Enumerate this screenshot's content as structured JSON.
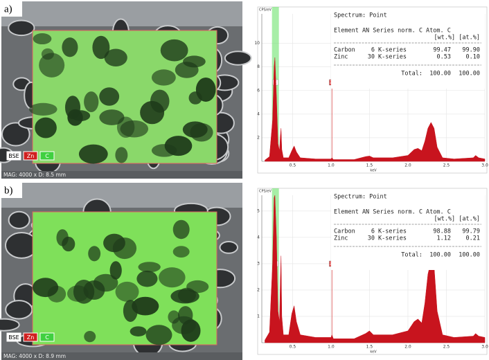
{
  "panels": [
    {
      "label": "a)",
      "image": {
        "tags": [
          "BSE",
          "Zn",
          "C"
        ],
        "footer": "MAG: 4000 x   D: 8.5 mm"
      },
      "spectrum": {
        "type": "area",
        "ylabel": "CPS/eV",
        "xlabel": "keV",
        "color": "#c8141e",
        "grid": true,
        "xlim": [
          0.1,
          3.0
        ],
        "ylim": [
          0,
          12.5
        ],
        "xticks": [
          0.5,
          {
            "value": 1,
            "label": "1.0"
          },
          1.5,
          {
            "value": 2,
            "label": "2.0"
          },
          2.5,
          {
            "value": 3,
            "label": "3.0"
          }
        ],
        "yticks": [
          2,
          4,
          6,
          8,
          10
        ],
        "markers": [
          {
            "label": "C",
            "x": 0.277,
            "color": "#5ee05e"
          },
          {
            "label": "Zn",
            "x": 1.012,
            "color": "#e05050"
          }
        ],
        "x": [
          0.14,
          0.2,
          0.24,
          0.26,
          0.27,
          0.29,
          0.31,
          0.33,
          0.34,
          0.35,
          0.36,
          0.38,
          0.45,
          0.49,
          0.52,
          0.55,
          0.6,
          0.8,
          1.0,
          1.012,
          1.03,
          1.3,
          1.45,
          1.5,
          1.55,
          1.8,
          2.0,
          2.08,
          2.13,
          2.18,
          2.22,
          2.26,
          2.3,
          2.34,
          2.38,
          2.45,
          2.6,
          2.85,
          2.88,
          2.92,
          3.0
        ],
        "values": [
          0.1,
          0.4,
          3.5,
          8.0,
          8.8,
          5.5,
          1.5,
          0.9,
          2.0,
          2.8,
          1.0,
          0.3,
          0.3,
          0.9,
          1.3,
          0.8,
          0.3,
          0.2,
          0.2,
          0.3,
          0.15,
          0.15,
          0.4,
          0.45,
          0.3,
          0.3,
          0.5,
          1.0,
          1.1,
          0.9,
          1.7,
          2.8,
          3.3,
          2.8,
          1.2,
          0.3,
          0.2,
          0.3,
          0.5,
          0.3,
          0.2
        ]
      },
      "table": {
        "title": "Spectrum: Point",
        "header": "Element AN  Series   norm. C Atom. C",
        "units": "[wt.%]  [at.%]",
        "rows": [
          [
            "Carbon",
            "6",
            "K-series",
            "99.47",
            "99.90"
          ],
          [
            "Zinc",
            "30",
            "K-series",
            "0.53",
            "0.10"
          ]
        ],
        "total": [
          "Total:",
          "100.00",
          "100.00"
        ]
      }
    },
    {
      "label": "b)",
      "image": {
        "tags": [
          "BSE",
          "Zn",
          "C"
        ],
        "footer": "MAG: 4000 x   D: 8.9 mm"
      },
      "spectrum": {
        "type": "area",
        "ylabel": "CPS/eV",
        "xlabel": "keV",
        "color": "#c8141e",
        "grid": true,
        "xlim": [
          0.1,
          3.0
        ],
        "ylim": [
          0,
          5.6
        ],
        "xticks": [
          0.5,
          {
            "value": 1,
            "label": "1.0"
          },
          1.5,
          {
            "value": 2,
            "label": "2.0"
          },
          2.5,
          {
            "value": 3,
            "label": "3.0"
          }
        ],
        "yticks": [
          1,
          2,
          3,
          4,
          5
        ],
        "markers": [
          {
            "label": "C",
            "x": 0.277,
            "color": "#5ee05e"
          },
          {
            "label": "Zn",
            "x": 1.012,
            "color": "#e05050"
          }
        ],
        "x": [
          0.14,
          0.2,
          0.24,
          0.26,
          0.27,
          0.29,
          0.31,
          0.33,
          0.34,
          0.35,
          0.36,
          0.38,
          0.45,
          0.49,
          0.52,
          0.55,
          0.6,
          0.8,
          1.0,
          1.012,
          1.03,
          1.3,
          1.45,
          1.5,
          1.55,
          1.8,
          2.0,
          2.08,
          2.13,
          2.18,
          2.22,
          2.26,
          2.3,
          2.34,
          2.38,
          2.45,
          2.6,
          2.85,
          2.88,
          2.92,
          3.0
        ],
        "values": [
          0.1,
          0.4,
          3.0,
          5.5,
          5.6,
          4.0,
          1.2,
          0.8,
          2.2,
          3.3,
          1.0,
          0.3,
          0.3,
          1.1,
          1.4,
          0.8,
          0.3,
          0.2,
          0.2,
          0.3,
          0.15,
          0.15,
          0.35,
          0.45,
          0.3,
          0.3,
          0.45,
          0.8,
          0.9,
          0.75,
          1.5,
          2.6,
          3.1,
          2.9,
          1.2,
          0.3,
          0.2,
          0.25,
          0.35,
          0.25,
          0.2
        ]
      },
      "table": {
        "title": "Spectrum: Point",
        "header": "Element AN  Series   norm. C Atom. C",
        "units": "[wt.%]  [at.%]",
        "rows": [
          [
            "Carbon",
            "6",
            "K-series",
            "98.88",
            "99.79"
          ],
          [
            "Zinc",
            "30",
            "K-series",
            "1.12",
            "0.21"
          ]
        ],
        "total": [
          "Total:",
          "100.00",
          "100.00"
        ]
      }
    }
  ]
}
